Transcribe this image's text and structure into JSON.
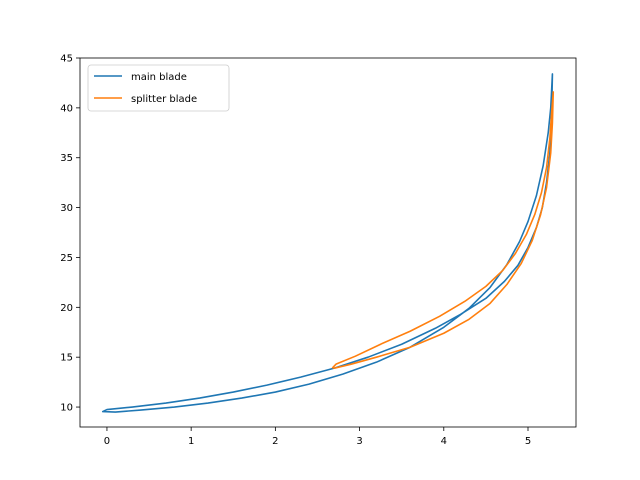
{
  "chart_data": {
    "type": "line",
    "title": "",
    "xlabel": "",
    "ylabel": "",
    "xlim": [
      -0.32,
      5.57
    ],
    "ylim": [
      8.0,
      45.0
    ],
    "xticks": [
      0,
      1,
      2,
      3,
      4,
      5
    ],
    "yticks": [
      10,
      15,
      20,
      25,
      30,
      35,
      40,
      45
    ],
    "legend": {
      "position": "upper-left"
    },
    "grid": false,
    "series": [
      {
        "name": "main blade",
        "color": "#1f77b4",
        "x": [
          5.29,
          5.27,
          5.24,
          5.18,
          5.1,
          5.0,
          4.9,
          4.75,
          4.55,
          4.3,
          4.0,
          3.6,
          3.2,
          2.8,
          2.4,
          2.0,
          1.6,
          1.2,
          0.8,
          0.4,
          0.1,
          -0.05,
          0.0,
          0.3,
          0.7,
          1.1,
          1.5,
          1.9,
          2.3,
          2.7,
          3.1,
          3.5,
          3.9,
          4.2,
          4.5,
          4.72,
          4.88,
          5.0,
          5.1,
          5.17,
          5.22,
          5.26,
          5.28,
          5.29
        ],
        "y": [
          43.4,
          40.0,
          37.5,
          34.2,
          31.2,
          28.6,
          26.6,
          24.3,
          22.0,
          19.9,
          18.0,
          16.0,
          14.5,
          13.3,
          12.3,
          11.5,
          10.9,
          10.4,
          10.0,
          9.7,
          9.5,
          9.55,
          9.75,
          10.0,
          10.4,
          10.9,
          11.5,
          12.2,
          13.0,
          13.9,
          15.0,
          16.3,
          17.9,
          19.3,
          20.9,
          22.6,
          24.2,
          26.0,
          28.0,
          30.0,
          32.5,
          35.5,
          39.0,
          43.4
        ]
      },
      {
        "name": "splitter blade",
        "color": "#ff7f0e",
        "x": [
          5.3,
          5.29,
          5.27,
          5.22,
          5.15,
          5.05,
          4.92,
          4.75,
          4.55,
          4.3,
          4.0,
          3.6,
          3.2,
          2.9,
          2.7,
          2.68,
          2.72,
          2.95,
          3.25,
          3.6,
          3.95,
          4.25,
          4.5,
          4.7,
          4.85,
          4.98,
          5.08,
          5.16,
          5.22,
          5.26,
          5.28,
          5.3
        ],
        "y": [
          41.6,
          38.5,
          35.5,
          32.0,
          29.3,
          26.7,
          24.4,
          22.3,
          20.4,
          18.8,
          17.4,
          16.0,
          15.0,
          14.3,
          13.9,
          13.95,
          14.3,
          15.1,
          16.3,
          17.6,
          19.1,
          20.6,
          22.1,
          23.7,
          25.4,
          27.3,
          29.3,
          31.5,
          34.0,
          37.0,
          39.5,
          41.6
        ]
      }
    ]
  }
}
